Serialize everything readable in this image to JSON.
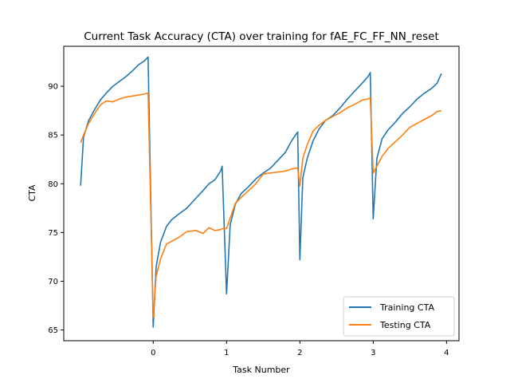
{
  "chart_data": {
    "type": "line",
    "title": "Current Task Accuracy (CTA) over training for fAE_FC_FF_NN_reset",
    "xlabel": "Task Number",
    "ylabel": "CTA",
    "xlim": [
      -1.22,
      4.17
    ],
    "ylim": [
      63.9,
      94.1
    ],
    "xticks": [
      0,
      1,
      2,
      3,
      4
    ],
    "xtick_labels": [
      "0",
      "1",
      "2",
      "3",
      "4"
    ],
    "yticks": [
      65,
      70,
      75,
      80,
      85,
      90
    ],
    "ytick_labels": [
      "65",
      "70",
      "75",
      "80",
      "85",
      "90"
    ],
    "grid": false,
    "legend_position": "lower-right",
    "series": [
      {
        "name": "Training CTA",
        "color": "#1f77b4",
        "points": [
          [
            -0.99,
            79.8
          ],
          [
            -0.95,
            84.8
          ],
          [
            -0.88,
            86.5
          ],
          [
            -0.8,
            87.6
          ],
          [
            -0.72,
            88.6
          ],
          [
            -0.64,
            89.3
          ],
          [
            -0.55,
            90.0
          ],
          [
            -0.46,
            90.5
          ],
          [
            -0.37,
            91.0
          ],
          [
            -0.28,
            91.6
          ],
          [
            -0.2,
            92.2
          ],
          [
            -0.12,
            92.6
          ],
          [
            -0.07,
            93.0
          ],
          [
            0.0,
            65.3
          ],
          [
            0.04,
            71.5
          ],
          [
            0.1,
            74.0
          ],
          [
            0.18,
            75.6
          ],
          [
            0.25,
            76.3
          ],
          [
            0.35,
            76.9
          ],
          [
            0.46,
            77.5
          ],
          [
            0.58,
            78.5
          ],
          [
            0.68,
            79.3
          ],
          [
            0.76,
            80.0
          ],
          [
            0.84,
            80.4
          ],
          [
            0.92,
            81.3
          ],
          [
            0.94,
            81.8
          ],
          [
            1.0,
            68.7
          ],
          [
            1.05,
            75.8
          ],
          [
            1.12,
            77.9
          ],
          [
            1.2,
            79.0
          ],
          [
            1.3,
            79.7
          ],
          [
            1.4,
            80.5
          ],
          [
            1.5,
            81.1
          ],
          [
            1.6,
            81.6
          ],
          [
            1.7,
            82.4
          ],
          [
            1.8,
            83.2
          ],
          [
            1.88,
            84.3
          ],
          [
            1.95,
            85.1
          ],
          [
            1.97,
            85.3
          ],
          [
            2.0,
            72.2
          ],
          [
            2.04,
            80.6
          ],
          [
            2.1,
            82.6
          ],
          [
            2.18,
            84.4
          ],
          [
            2.26,
            85.6
          ],
          [
            2.35,
            86.5
          ],
          [
            2.45,
            87.0
          ],
          [
            2.55,
            87.8
          ],
          [
            2.65,
            88.7
          ],
          [
            2.76,
            89.6
          ],
          [
            2.86,
            90.4
          ],
          [
            2.93,
            91.0
          ],
          [
            2.96,
            91.4
          ],
          [
            3.0,
            76.4
          ],
          [
            3.05,
            82.6
          ],
          [
            3.12,
            84.6
          ],
          [
            3.2,
            85.5
          ],
          [
            3.3,
            86.3
          ],
          [
            3.4,
            87.2
          ],
          [
            3.5,
            87.9
          ],
          [
            3.6,
            88.7
          ],
          [
            3.7,
            89.3
          ],
          [
            3.8,
            89.8
          ],
          [
            3.87,
            90.3
          ],
          [
            3.93,
            91.3
          ]
        ]
      },
      {
        "name": "Testing CTA",
        "color": "#ff7f0e",
        "points": [
          [
            -0.99,
            84.2
          ],
          [
            -0.95,
            85.0
          ],
          [
            -0.88,
            86.2
          ],
          [
            -0.8,
            87.2
          ],
          [
            -0.72,
            88.1
          ],
          [
            -0.64,
            88.5
          ],
          [
            -0.55,
            88.4
          ],
          [
            -0.46,
            88.7
          ],
          [
            -0.37,
            88.9
          ],
          [
            -0.28,
            89.0
          ],
          [
            -0.2,
            89.1
          ],
          [
            -0.12,
            89.2
          ],
          [
            -0.07,
            89.3
          ],
          [
            0.0,
            66.3
          ],
          [
            0.04,
            70.5
          ],
          [
            0.1,
            72.3
          ],
          [
            0.18,
            73.8
          ],
          [
            0.25,
            74.1
          ],
          [
            0.35,
            74.5
          ],
          [
            0.46,
            75.1
          ],
          [
            0.58,
            75.2
          ],
          [
            0.68,
            74.9
          ],
          [
            0.76,
            75.5
          ],
          [
            0.84,
            75.2
          ],
          [
            0.92,
            75.3
          ],
          [
            0.94,
            75.4
          ],
          [
            1.0,
            75.4
          ],
          [
            1.05,
            76.5
          ],
          [
            1.12,
            78.0
          ],
          [
            1.2,
            78.6
          ],
          [
            1.3,
            79.3
          ],
          [
            1.4,
            80.0
          ],
          [
            1.5,
            81.0
          ],
          [
            1.6,
            81.1
          ],
          [
            1.7,
            81.2
          ],
          [
            1.8,
            81.3
          ],
          [
            1.88,
            81.5
          ],
          [
            1.95,
            81.6
          ],
          [
            1.97,
            81.6
          ],
          [
            2.0,
            79.8
          ],
          [
            2.04,
            82.6
          ],
          [
            2.1,
            84.0
          ],
          [
            2.18,
            85.4
          ],
          [
            2.26,
            86.0
          ],
          [
            2.35,
            86.5
          ],
          [
            2.45,
            86.9
          ],
          [
            2.55,
            87.3
          ],
          [
            2.65,
            87.8
          ],
          [
            2.76,
            88.2
          ],
          [
            2.86,
            88.6
          ],
          [
            2.93,
            88.7
          ],
          [
            2.96,
            88.8
          ],
          [
            3.0,
            81.1
          ],
          [
            3.05,
            81.8
          ],
          [
            3.12,
            82.8
          ],
          [
            3.2,
            83.6
          ],
          [
            3.3,
            84.3
          ],
          [
            3.4,
            85.0
          ],
          [
            3.5,
            85.8
          ],
          [
            3.6,
            86.2
          ],
          [
            3.7,
            86.6
          ],
          [
            3.8,
            87.0
          ],
          [
            3.87,
            87.4
          ],
          [
            3.93,
            87.5
          ]
        ]
      }
    ]
  }
}
